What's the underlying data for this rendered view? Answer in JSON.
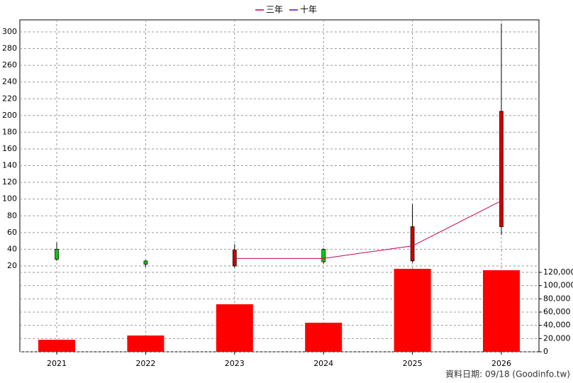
{
  "chart_data": {
    "type": "candlestick",
    "categories": [
      "2021",
      "2022",
      "2023",
      "2024",
      "2025",
      "2026"
    ],
    "open": [
      40,
      26,
      20,
      40,
      26,
      67
    ],
    "high": [
      48,
      27,
      46,
      41,
      94,
      310
    ],
    "low": [
      26,
      19,
      18,
      23,
      24,
      57
    ],
    "close": [
      28,
      22,
      39,
      25,
      67,
      205
    ],
    "up_color": "#cc0000",
    "down_color": "#00cc00",
    "volume": {
      "values": [
        18200,
        24600,
        71800,
        43900,
        125300,
        123200
      ],
      "color": "#ff0000",
      "axis": "y2"
    },
    "series": [
      {
        "name": "三年",
        "color": "#cc0055",
        "values": [
          null,
          null,
          29,
          29,
          44,
          98
        ]
      },
      {
        "name": "十年",
        "color": "#6600cc",
        "values": [
          null,
          null,
          null,
          null,
          null,
          null
        ]
      }
    ],
    "ylim": [
      -82.7,
      314.4
    ],
    "yticks": [
      20,
      40,
      60,
      80,
      100,
      120,
      140,
      160,
      180,
      200,
      220,
      240,
      260,
      280,
      300
    ],
    "y2lim": [
      0,
      501400
    ],
    "y2ticks": [
      0,
      {
        "value": 20000,
        "label": "20,000"
      },
      {
        "value": 40000,
        "label": "40,000"
      },
      {
        "value": 60000,
        "label": "60,000"
      },
      {
        "value": 80000,
        "label": "80,000"
      },
      {
        "value": 100000,
        "label": "100,000"
      },
      {
        "value": 120000,
        "label": "120,000"
      }
    ],
    "grid": true,
    "legend": "top",
    "footnote": "資料日期: 09/18  (Goodinfo.tw)"
  }
}
